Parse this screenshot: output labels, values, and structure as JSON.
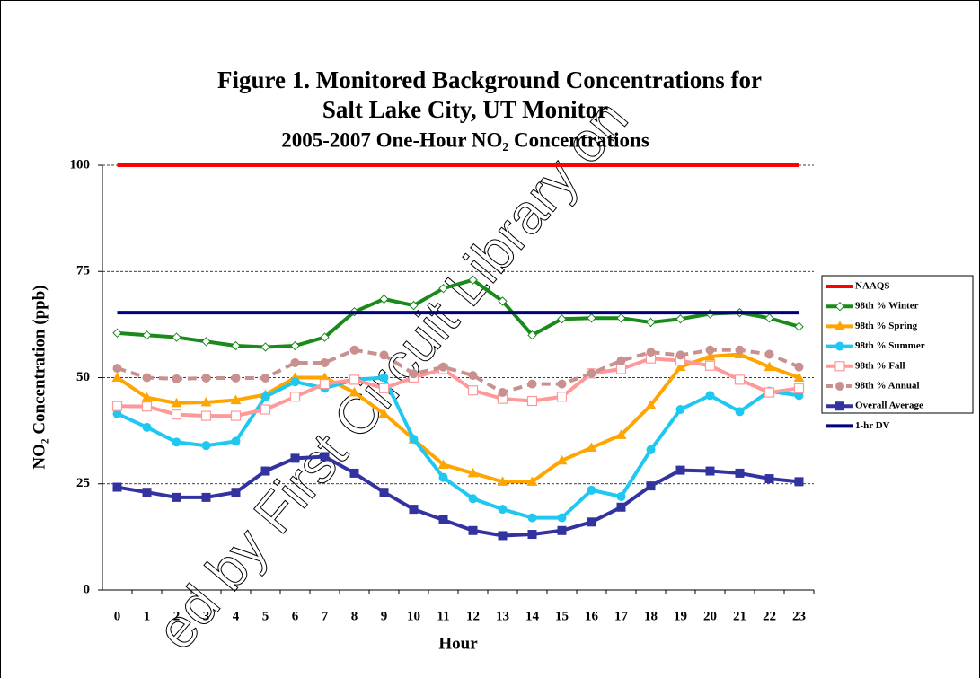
{
  "chart_data": {
    "type": "line",
    "title": "Figure 1.  Monitored Background Concentrations for",
    "title_line2": "Salt Lake City, UT Monitor",
    "subtitle": "2005-2007 One-Hour NO₂ Concentrations",
    "x_label": "Hour",
    "y_label": "NO₂ Concentration  (ppb)",
    "watermark": "ed by First Circuit Library on",
    "categories": [
      "0",
      "1",
      "2",
      "3",
      "4",
      "5",
      "6",
      "7",
      "8",
      "9",
      "10",
      "11",
      "12",
      "13",
      "14",
      "15",
      "16",
      "17",
      "18",
      "19",
      "20",
      "21",
      "22",
      "23"
    ],
    "ylim": [
      0,
      100
    ],
    "yticks": [
      0,
      25,
      50,
      75,
      100
    ],
    "grid": true,
    "legend": "right",
    "series": [
      {
        "name": "NAAQS",
        "color": "#ff0000",
        "marker": "none",
        "values": [
          100,
          100,
          100,
          100,
          100,
          100,
          100,
          100,
          100,
          100,
          100,
          100,
          100,
          100,
          100,
          100,
          100,
          100,
          100,
          100,
          100,
          100,
          100,
          100
        ]
      },
      {
        "name": "98th % Winter",
        "color": "#1a8a1a",
        "marker": "diamond",
        "values": [
          60.5,
          60,
          59.5,
          58.5,
          57.5,
          57.2,
          57.5,
          59.5,
          65.5,
          68.5,
          67,
          71,
          73,
          68,
          60,
          63.8,
          64,
          64,
          63,
          63.8,
          65,
          65.3,
          64,
          62
        ]
      },
      {
        "name": "98th % Spring",
        "color": "#ffa500",
        "marker": "triangle",
        "values": [
          50,
          45.3,
          44,
          44.2,
          44.7,
          46,
          50,
          50,
          46.5,
          41.5,
          35.5,
          29.5,
          27.5,
          25.5,
          25.5,
          30.5,
          33.5,
          36.5,
          43.5,
          52.5,
          55,
          55.5,
          52.5,
          50
        ]
      },
      {
        "name": "98th % Summer",
        "color": "#1ec8f0",
        "marker": "circle",
        "values": [
          41.5,
          38.3,
          34.8,
          34,
          35,
          45.5,
          49,
          47.5,
          49.5,
          50,
          35.5,
          26.5,
          21.5,
          19,
          17,
          17,
          23.5,
          22,
          33,
          42.5,
          45.8,
          42,
          46.8,
          45.8
        ]
      },
      {
        "name": "98th % Fall",
        "color": "#ff9999",
        "marker": "square-open",
        "values": [
          43.3,
          43.2,
          41.3,
          41,
          41,
          42.5,
          45.5,
          48.5,
          49.5,
          47.5,
          50,
          52,
          47,
          45,
          44.5,
          45.5,
          51,
          52,
          54.5,
          54,
          52.8,
          49.5,
          46.5,
          47.5
        ]
      },
      {
        "name": "98th % Annual",
        "color": "#c99090",
        "marker": "circle",
        "dash": true,
        "values": [
          52.2,
          50,
          49.7,
          49.9,
          49.9,
          49.9,
          53.5,
          53.5,
          56.5,
          55.3,
          50.9,
          52.5,
          50.5,
          46.5,
          48.5,
          48.5,
          51,
          54,
          56,
          55.3,
          56.5,
          56.5,
          55.5,
          52.5
        ]
      },
      {
        "name": "Overall Average",
        "color": "#3333a0",
        "marker": "square",
        "values": [
          24.2,
          23,
          21.8,
          21.8,
          23,
          28,
          31,
          31.4,
          27.5,
          23,
          19,
          16.5,
          14,
          12.8,
          13.1,
          14,
          16,
          19.5,
          24.5,
          28.2,
          28,
          27.5,
          26.2,
          25.5
        ]
      },
      {
        "name": "1-hr DV",
        "color": "#000080",
        "marker": "none",
        "values": [
          65.3,
          65.3,
          65.3,
          65.3,
          65.3,
          65.3,
          65.3,
          65.3,
          65.3,
          65.3,
          65.3,
          65.3,
          65.3,
          65.3,
          65.3,
          65.3,
          65.3,
          65.3,
          65.3,
          65.3,
          65.3,
          65.3,
          65.3,
          65.3
        ]
      }
    ]
  }
}
